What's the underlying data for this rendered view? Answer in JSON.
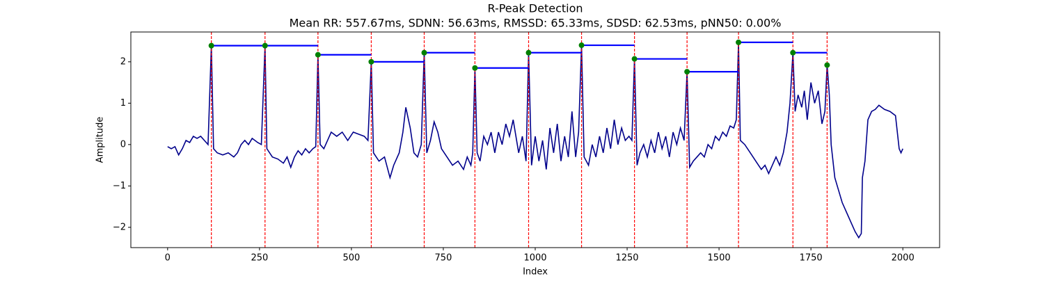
{
  "chart_data": {
    "type": "line",
    "title": "R-Peak Detection",
    "subtitle": "Mean RR: 557.67ms, SDNN: 56.63ms, RMSSD: 65.33ms, SDSD: 62.53ms, pNN50: 0.00%",
    "x_label": "Index",
    "y_label": "Amplitude",
    "xlim": [
      -100,
      2100
    ],
    "ylim": [
      -2.49,
      2.72
    ],
    "xticks": [
      0,
      250,
      500,
      750,
      1000,
      1250,
      1500,
      1750,
      2000
    ],
    "yticks": [
      {
        "value": -2,
        "label": "−2"
      },
      {
        "value": -1,
        "label": "−1"
      },
      0,
      1,
      2
    ],
    "signal": {
      "color": "#00008b",
      "x": [
        0,
        10,
        20,
        30,
        40,
        50,
        60,
        70,
        80,
        90,
        100,
        110,
        119,
        125,
        135,
        150,
        165,
        180,
        190,
        200,
        210,
        220,
        230,
        245,
        255,
        265,
        270,
        285,
        300,
        315,
        325,
        335,
        345,
        355,
        365,
        375,
        385,
        395,
        403,
        409,
        415,
        425,
        435,
        445,
        460,
        475,
        490,
        505,
        520,
        535,
        545,
        554,
        560,
        575,
        590,
        605,
        615,
        630,
        640,
        648,
        660,
        670,
        680,
        690,
        698,
        705,
        715,
        725,
        735,
        745,
        760,
        775,
        790,
        805,
        815,
        825,
        830,
        836,
        842,
        850,
        860,
        870,
        880,
        890,
        900,
        910,
        920,
        930,
        940,
        955,
        965,
        975,
        982,
        990,
        1000,
        1010,
        1020,
        1030,
        1040,
        1050,
        1060,
        1070,
        1080,
        1090,
        1100,
        1110,
        1118,
        1126,
        1133,
        1145,
        1155,
        1165,
        1175,
        1185,
        1195,
        1205,
        1215,
        1225,
        1235,
        1245,
        1255,
        1263,
        1270,
        1277,
        1285,
        1295,
        1305,
        1315,
        1325,
        1335,
        1345,
        1355,
        1365,
        1375,
        1385,
        1395,
        1405,
        1413,
        1420,
        1430,
        1440,
        1450,
        1460,
        1470,
        1480,
        1490,
        1500,
        1510,
        1520,
        1530,
        1540,
        1547,
        1553,
        1558,
        1570,
        1585,
        1600,
        1615,
        1625,
        1635,
        1645,
        1655,
        1665,
        1675,
        1685,
        1693,
        1701,
        1707,
        1715,
        1725,
        1732,
        1740,
        1750,
        1760,
        1770,
        1780,
        1788,
        1794,
        1800,
        1805,
        1815,
        1825,
        1835,
        1850,
        1860,
        1870,
        1880,
        1887,
        1890,
        1897,
        1905,
        1915,
        1925,
        1935,
        1950,
        1965,
        1980,
        1990,
        1995,
        2000
      ],
      "values": [
        -0.05,
        -0.1,
        -0.05,
        -0.25,
        -0.1,
        0.1,
        0.05,
        0.2,
        0.15,
        0.2,
        0.1,
        0.0,
        2.39,
        -0.1,
        -0.2,
        -0.25,
        -0.2,
        -0.3,
        -0.2,
        0.0,
        0.1,
        0.0,
        0.15,
        0.05,
        0.0,
        2.39,
        -0.1,
        -0.3,
        -0.35,
        -0.45,
        -0.3,
        -0.55,
        -0.3,
        -0.15,
        -0.25,
        -0.1,
        -0.2,
        -0.1,
        -0.05,
        2.17,
        0.0,
        -0.1,
        0.1,
        0.3,
        0.2,
        0.3,
        0.1,
        0.3,
        0.25,
        0.2,
        0.1,
        2.0,
        -0.2,
        -0.4,
        -0.3,
        -0.8,
        -0.5,
        -0.2,
        0.3,
        0.9,
        0.4,
        -0.2,
        -0.3,
        0.0,
        2.22,
        -0.2,
        0.1,
        0.55,
        0.3,
        -0.1,
        -0.3,
        -0.5,
        -0.4,
        -0.6,
        -0.3,
        -0.5,
        -0.2,
        1.85,
        -0.2,
        -0.4,
        0.2,
        0.0,
        0.3,
        -0.2,
        0.3,
        0.0,
        0.5,
        0.2,
        0.6,
        -0.2,
        0.2,
        -0.4,
        2.22,
        -0.5,
        0.2,
        -0.4,
        0.1,
        -0.6,
        0.4,
        -0.2,
        0.5,
        -0.4,
        0.2,
        -0.3,
        0.8,
        -0.3,
        0.3,
        2.4,
        -0.3,
        -0.5,
        0.0,
        -0.3,
        0.2,
        -0.2,
        0.4,
        -0.1,
        0.6,
        0.0,
        0.4,
        0.1,
        0.2,
        0.1,
        2.07,
        -0.5,
        -0.2,
        0.0,
        -0.3,
        0.1,
        -0.2,
        0.3,
        -0.1,
        0.2,
        -0.3,
        0.3,
        0.0,
        0.4,
        0.1,
        1.76,
        -0.55,
        -0.4,
        -0.3,
        -0.2,
        -0.3,
        0.0,
        -0.1,
        0.2,
        0.1,
        0.3,
        0.2,
        0.45,
        0.4,
        0.6,
        2.47,
        0.1,
        0.0,
        -0.2,
        -0.4,
        -0.6,
        -0.5,
        -0.7,
        -0.5,
        -0.3,
        -0.5,
        -0.2,
        0.3,
        1.0,
        2.22,
        0.8,
        1.2,
        0.9,
        1.3,
        0.6,
        1.5,
        1.0,
        1.3,
        0.5,
        0.8,
        1.92,
        1.2,
        0.0,
        -0.8,
        -1.1,
        -1.4,
        -1.7,
        -1.9,
        -2.1,
        -2.25,
        -2.15,
        -0.8,
        -0.4,
        0.6,
        0.8,
        0.85,
        0.95,
        0.85,
        0.8,
        0.7,
        -0.1,
        -0.2,
        -0.1
      ]
    },
    "peaks": {
      "color": "green",
      "line_color": "red",
      "interval_color": "blue",
      "x": [
        119,
        265,
        409,
        554,
        698,
        836,
        982,
        1126,
        1270,
        1413,
        1553,
        1701,
        1794
      ],
      "values": [
        2.39,
        2.39,
        2.17,
        2.0,
        2.22,
        1.85,
        2.22,
        2.4,
        2.07,
        1.76,
        2.47,
        2.22,
        1.92
      ]
    }
  }
}
